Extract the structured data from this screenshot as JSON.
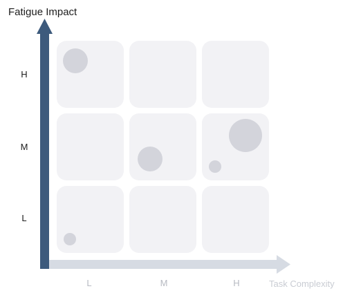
{
  "chart_data": {
    "type": "scatter",
    "title": "",
    "ylabel": "Fatigue Impact",
    "xlabel": "Task Complexity",
    "x_categories": [
      "L",
      "M",
      "H"
    ],
    "y_categories": [
      "L",
      "M",
      "H"
    ],
    "points": [
      {
        "x": "L",
        "y": "H",
        "size": "medium"
      },
      {
        "x": "M",
        "y": "M",
        "size": "medium"
      },
      {
        "x": "H",
        "y": "M",
        "size": "large"
      },
      {
        "x": "H",
        "y": "M",
        "size": "small"
      },
      {
        "x": "L",
        "y": "L",
        "size": "small"
      }
    ],
    "grid": true,
    "colors": {
      "y_axis": "#3d5a7c",
      "x_axis": "#d6dbe3",
      "cell": "#f2f2f5",
      "bubble": "#d3d4db"
    }
  }
}
